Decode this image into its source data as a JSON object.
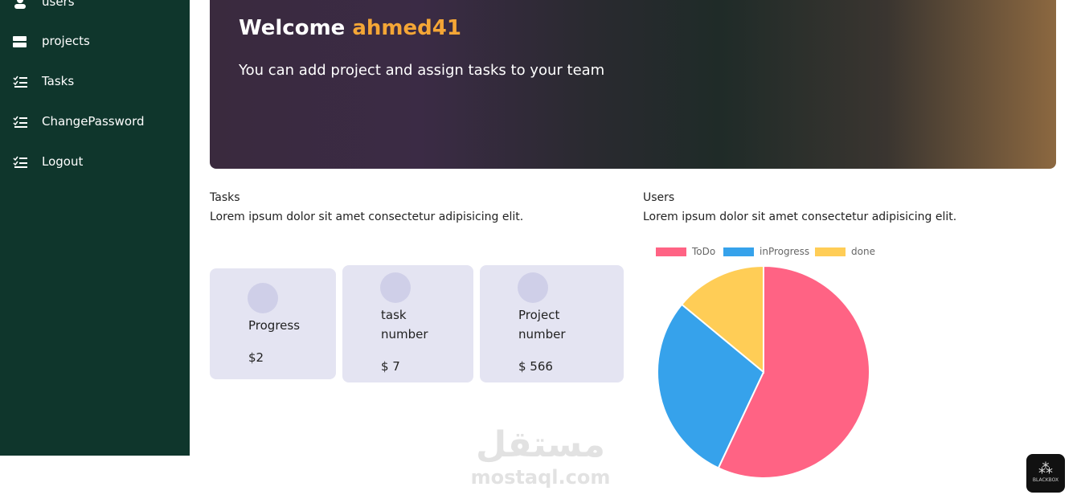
{
  "sidebar": {
    "items": [
      "users",
      "projects",
      "Tasks",
      "ChangePassword",
      "Logout"
    ]
  },
  "hero": {
    "welcome": "Welcome",
    "username": "ahmed41",
    "subtitle": "You can add project and assign tasks to your team"
  },
  "tasks": {
    "title": "Tasks",
    "description": "Lorem ipsum dolor sit amet consectetur adipisicing elit.",
    "cards": [
      {
        "label": "Progress",
        "value": "$2"
      },
      {
        "label": "task number",
        "value": "$ 7"
      },
      {
        "label": "Project number",
        "value": "$ 566"
      }
    ]
  },
  "users": {
    "title": "Users",
    "description": "Lorem ipsum dolor sit amet consectetur adipisicing elit."
  },
  "chart_data": {
    "type": "pie",
    "categories": [
      "ToDo",
      "inProgress",
      "done"
    ],
    "values": [
      57,
      29,
      14
    ],
    "colors": [
      "#ff6384",
      "#36a2eb",
      "#ffcd56"
    ],
    "legend": "top"
  },
  "watermark": {
    "arabic": "مستقل",
    "latin": "mostaql.com"
  },
  "badge": "BLACKBOX"
}
